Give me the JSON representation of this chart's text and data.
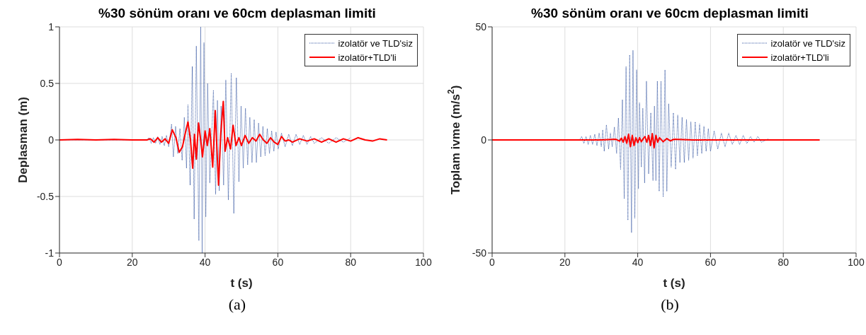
{
  "chart_data": [
    {
      "type": "line",
      "title": "%30 sönüm oranı ve 60cm deplasman limiti",
      "xlabel": "t (s)",
      "ylabel": "Deplasman (m)",
      "xlim": [
        0,
        100
      ],
      "xticks": [
        0,
        20,
        40,
        60,
        80,
        100
      ],
      "ylim": [
        -1,
        1
      ],
      "yticks": [
        -1,
        -0.5,
        0,
        0.5,
        1
      ],
      "grid": true,
      "legend": "top right",
      "marker": "none",
      "annotations": [
        "(a)"
      ],
      "series": [
        {
          "name": "izolatör ve TLD'siz",
          "color": "#3b5ba5",
          "line_style": "dotted",
          "x": [
            0,
            24,
            24.6,
            25.2,
            25.8,
            26.4,
            27,
            27.6,
            28.2,
            28.8,
            29.4,
            30,
            30.8,
            31.3,
            31.9,
            32.5,
            33.1,
            33.7,
            34.3,
            34.9,
            35.3,
            35.9,
            36.5,
            37,
            37.6,
            38.3,
            38.8,
            39.2,
            39.7,
            40.2,
            40.7,
            41.3,
            42.3,
            42.9,
            43.4,
            43.9,
            44.4,
            45.1,
            45.7,
            46.4,
            47.2,
            47.9,
            48.6,
            49.3,
            49.9,
            50.5,
            51.1,
            51.7,
            52.3,
            52.9,
            53.5,
            54.1,
            54.7,
            55.3,
            55.9,
            56.5,
            57.1,
            57.7,
            58.3,
            58.9,
            59.5,
            60.1,
            61,
            62,
            63,
            64,
            65,
            66,
            67,
            68,
            69,
            70,
            72,
            74,
            76,
            78,
            80
          ],
          "values": [
            0,
            0,
            0.02,
            -0.03,
            0.02,
            -0.03,
            0.03,
            -0.04,
            0.03,
            -0.05,
            0.04,
            -0.06,
            0.14,
            -0.15,
            0.12,
            -0.12,
            0.1,
            -0.18,
            0.2,
            -0.25,
            0.31,
            -0.4,
            0.65,
            -0.7,
            0.83,
            -0.89,
            1,
            -1,
            0.86,
            -0.68,
            0.5,
            -0.38,
            0.44,
            -0.48,
            0.35,
            -0.45,
            0.3,
            -0.4,
            0.53,
            -0.53,
            0.59,
            -0.65,
            0.55,
            -0.37,
            0.3,
            -0.25,
            0.28,
            -0.22,
            0.2,
            -0.2,
            0.18,
            -0.2,
            0.15,
            -0.15,
            0.12,
            -0.14,
            0.1,
            -0.12,
            0.08,
            -0.1,
            0.07,
            -0.08,
            0.06,
            -0.06,
            0.05,
            -0.05,
            0.05,
            -0.04,
            0.04,
            -0.04,
            0.03,
            -0.03,
            0.02,
            -0.03,
            0.02,
            -0.02,
            0.02
          ]
        },
        {
          "name": "izolatör+TLD'li",
          "color": "#ff0000",
          "line_style": "solid",
          "x": [
            0,
            5,
            10,
            15,
            20,
            24,
            25,
            26,
            27,
            28,
            29,
            30,
            31,
            32,
            32.9,
            33.8,
            34.5,
            35.3,
            36,
            36.6,
            37.1,
            37.6,
            38.2,
            38.8,
            39.3,
            40,
            40.6,
            41.3,
            42.1,
            42.8,
            43.7,
            44.3,
            45,
            45.5,
            46.2,
            47,
            47.7,
            48.5,
            49.3,
            50,
            51,
            52,
            53,
            54,
            55,
            56,
            57,
            58,
            59,
            60,
            61,
            62,
            63,
            64,
            66,
            68,
            70,
            72,
            74,
            76,
            78,
            80,
            82,
            84,
            86,
            88,
            90
          ],
          "values": [
            0,
            0.005,
            0,
            0.005,
            0,
            0,
            0.01,
            -0.02,
            0.02,
            -0.02,
            0.01,
            -0.03,
            0.09,
            0.02,
            -0.11,
            -0.06,
            0.05,
            0.16,
            0,
            -0.25,
            0.05,
            -0.17,
            0.15,
            0,
            -0.15,
            0.08,
            -0.05,
            0.1,
            -0.24,
            0.26,
            -0.4,
            0.05,
            0.34,
            -0.1,
            0.02,
            -0.08,
            0.13,
            -0.05,
            0.02,
            -0.05,
            0.04,
            -0.03,
            0.02,
            -0.01,
            0.05,
            0,
            -0.03,
            0.02,
            -0.02,
            -0.04,
            0.03,
            -0.01,
            0,
            -0.02,
            0.01,
            -0.01,
            0.01,
            -0.02,
            0.01,
            -0.02,
            0.01,
            -0.01,
            0.02,
            0,
            -0.01,
            0.01,
            0
          ]
        }
      ]
    },
    {
      "type": "line",
      "title": "%30 sönüm oranı ve 60cm deplasman limiti",
      "xlabel": "t (s)",
      "ylabel": "Toplam ivme (m/s$^{2}$)",
      "xlim": [
        0,
        100
      ],
      "xticks": [
        0,
        20,
        40,
        60,
        80,
        100
      ],
      "ylim": [
        -50,
        50
      ],
      "yticks": [
        -50,
        0,
        50
      ],
      "grid": true,
      "legend": "top right",
      "marker": "none",
      "annotations": [
        "(b)"
      ],
      "series": [
        {
          "name": "izolatör ve TLD'siz",
          "color": "#3b5ba5",
          "line_style": "dotted",
          "x": [
            0,
            24,
            24.6,
            25.2,
            25.8,
            26.4,
            27,
            27.6,
            28.2,
            28.8,
            29.4,
            30,
            30.4,
            30.8,
            31.4,
            32,
            32.5,
            33,
            33.6,
            34.2,
            34.7,
            35.3,
            35.8,
            36.3,
            36.8,
            37.3,
            37.8,
            38.3,
            38.7,
            39.2,
            39.7,
            40.2,
            40.5,
            41,
            41.4,
            41.9,
            42.4,
            43,
            43.6,
            44.2,
            44.6,
            45,
            45.4,
            45.9,
            46.4,
            47,
            47.5,
            48,
            48.5,
            49.2,
            49.8,
            50.4,
            51,
            51.6,
            52.2,
            52.8,
            53.4,
            54,
            54.6,
            55.2,
            55.8,
            56.4,
            57,
            57.6,
            58.2,
            58.8,
            59.4,
            60,
            61,
            62,
            63,
            64,
            65,
            66,
            67,
            68,
            69,
            70,
            71,
            72,
            73,
            74,
            76
          ],
          "values": [
            0,
            0,
            1.5,
            -1.5,
            1.5,
            -2,
            2,
            -2,
            2.5,
            -2.5,
            3,
            -3,
            4.5,
            -5,
            6.7,
            -4,
            3,
            -3,
            5.7,
            -6,
            9.7,
            -13,
            17.8,
            -26,
            32.4,
            -35.5,
            37.6,
            -41,
            39.6,
            -34.6,
            31,
            -21.6,
            16.4,
            -12,
            14,
            -19,
            26,
            -15,
            12,
            -18,
            15,
            -18,
            26,
            -22.7,
            26,
            -25.2,
            31,
            -22.7,
            16,
            -12,
            12,
            -13,
            11,
            -10,
            10,
            -10,
            9,
            -9,
            8,
            -8,
            8,
            -7,
            7,
            -6,
            6,
            -5,
            5,
            -5,
            4,
            -4,
            3,
            -3,
            3,
            -2,
            2,
            -2,
            2,
            -1.5,
            1.5,
            -1,
            1.5,
            -1,
            0.5
          ]
        },
        {
          "name": "izolatör+TLD'li",
          "color": "#ff0000",
          "line_style": "solid",
          "x": [
            0,
            20,
            30,
            34,
            35,
            35.5,
            36,
            36.5,
            37,
            37.5,
            38,
            38.5,
            39,
            39.5,
            40,
            40.5,
            41,
            41.5,
            42,
            42.5,
            43,
            43.5,
            44,
            44.5,
            45,
            45.5,
            46,
            47,
            48,
            49,
            50,
            55,
            60,
            70,
            80,
            90
          ],
          "values": [
            0,
            0,
            0,
            0.3,
            -0.5,
            0.8,
            -1,
            1.5,
            -1.5,
            2.5,
            -3,
            2,
            -2.5,
            1,
            -1.2,
            1,
            -0.8,
            0.5,
            1.5,
            -1,
            2,
            -2.5,
            2.8,
            -3.5,
            2,
            -1,
            1,
            -0.8,
            0.6,
            -0.4,
            0.3,
            0,
            0,
            0,
            0,
            0
          ]
        }
      ]
    }
  ]
}
